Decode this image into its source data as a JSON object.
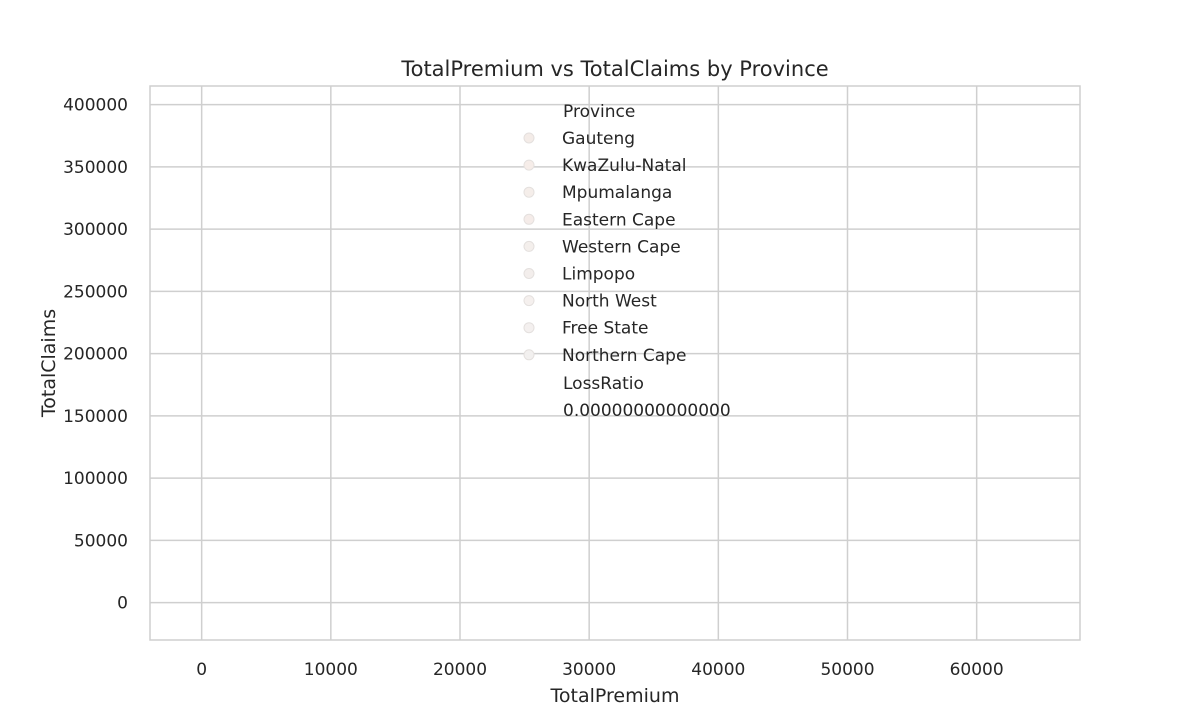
{
  "chart_data": {
    "type": "scatter",
    "title": "TotalPremium vs TotalClaims by Province",
    "xlabel": "TotalPremium",
    "ylabel": "TotalClaims",
    "xlim": [
      -4000,
      68000
    ],
    "ylim": [
      -30000,
      415000
    ],
    "x_ticks": [
      0,
      10000,
      20000,
      30000,
      40000,
      50000,
      60000
    ],
    "y_ticks": [
      0,
      50000,
      100000,
      150000,
      200000,
      250000,
      300000,
      350000,
      400000
    ],
    "grid": true,
    "legend_placement": "upper-center",
    "series": [],
    "legend": {
      "hue_title": "Province",
      "hue_entries": [
        {
          "name": "Gauteng",
          "color": "#f4ece8"
        },
        {
          "name": "KwaZulu-Natal",
          "color": "#f6ede9"
        },
        {
          "name": "Mpumalanga",
          "color": "#f5eeea"
        },
        {
          "name": "Eastern Cape",
          "color": "#f5ece9"
        },
        {
          "name": "Western Cape",
          "color": "#f4efec"
        },
        {
          "name": "Limpopo",
          "color": "#f3eeec"
        },
        {
          "name": "North West",
          "color": "#f5f0ee"
        },
        {
          "name": "Free State",
          "color": "#f4f0ef"
        },
        {
          "name": "Northern Cape",
          "color": "#f2f0ef"
        }
      ],
      "size_title": "LossRatio",
      "size_entries": [
        "0.00000000000000"
      ]
    }
  }
}
